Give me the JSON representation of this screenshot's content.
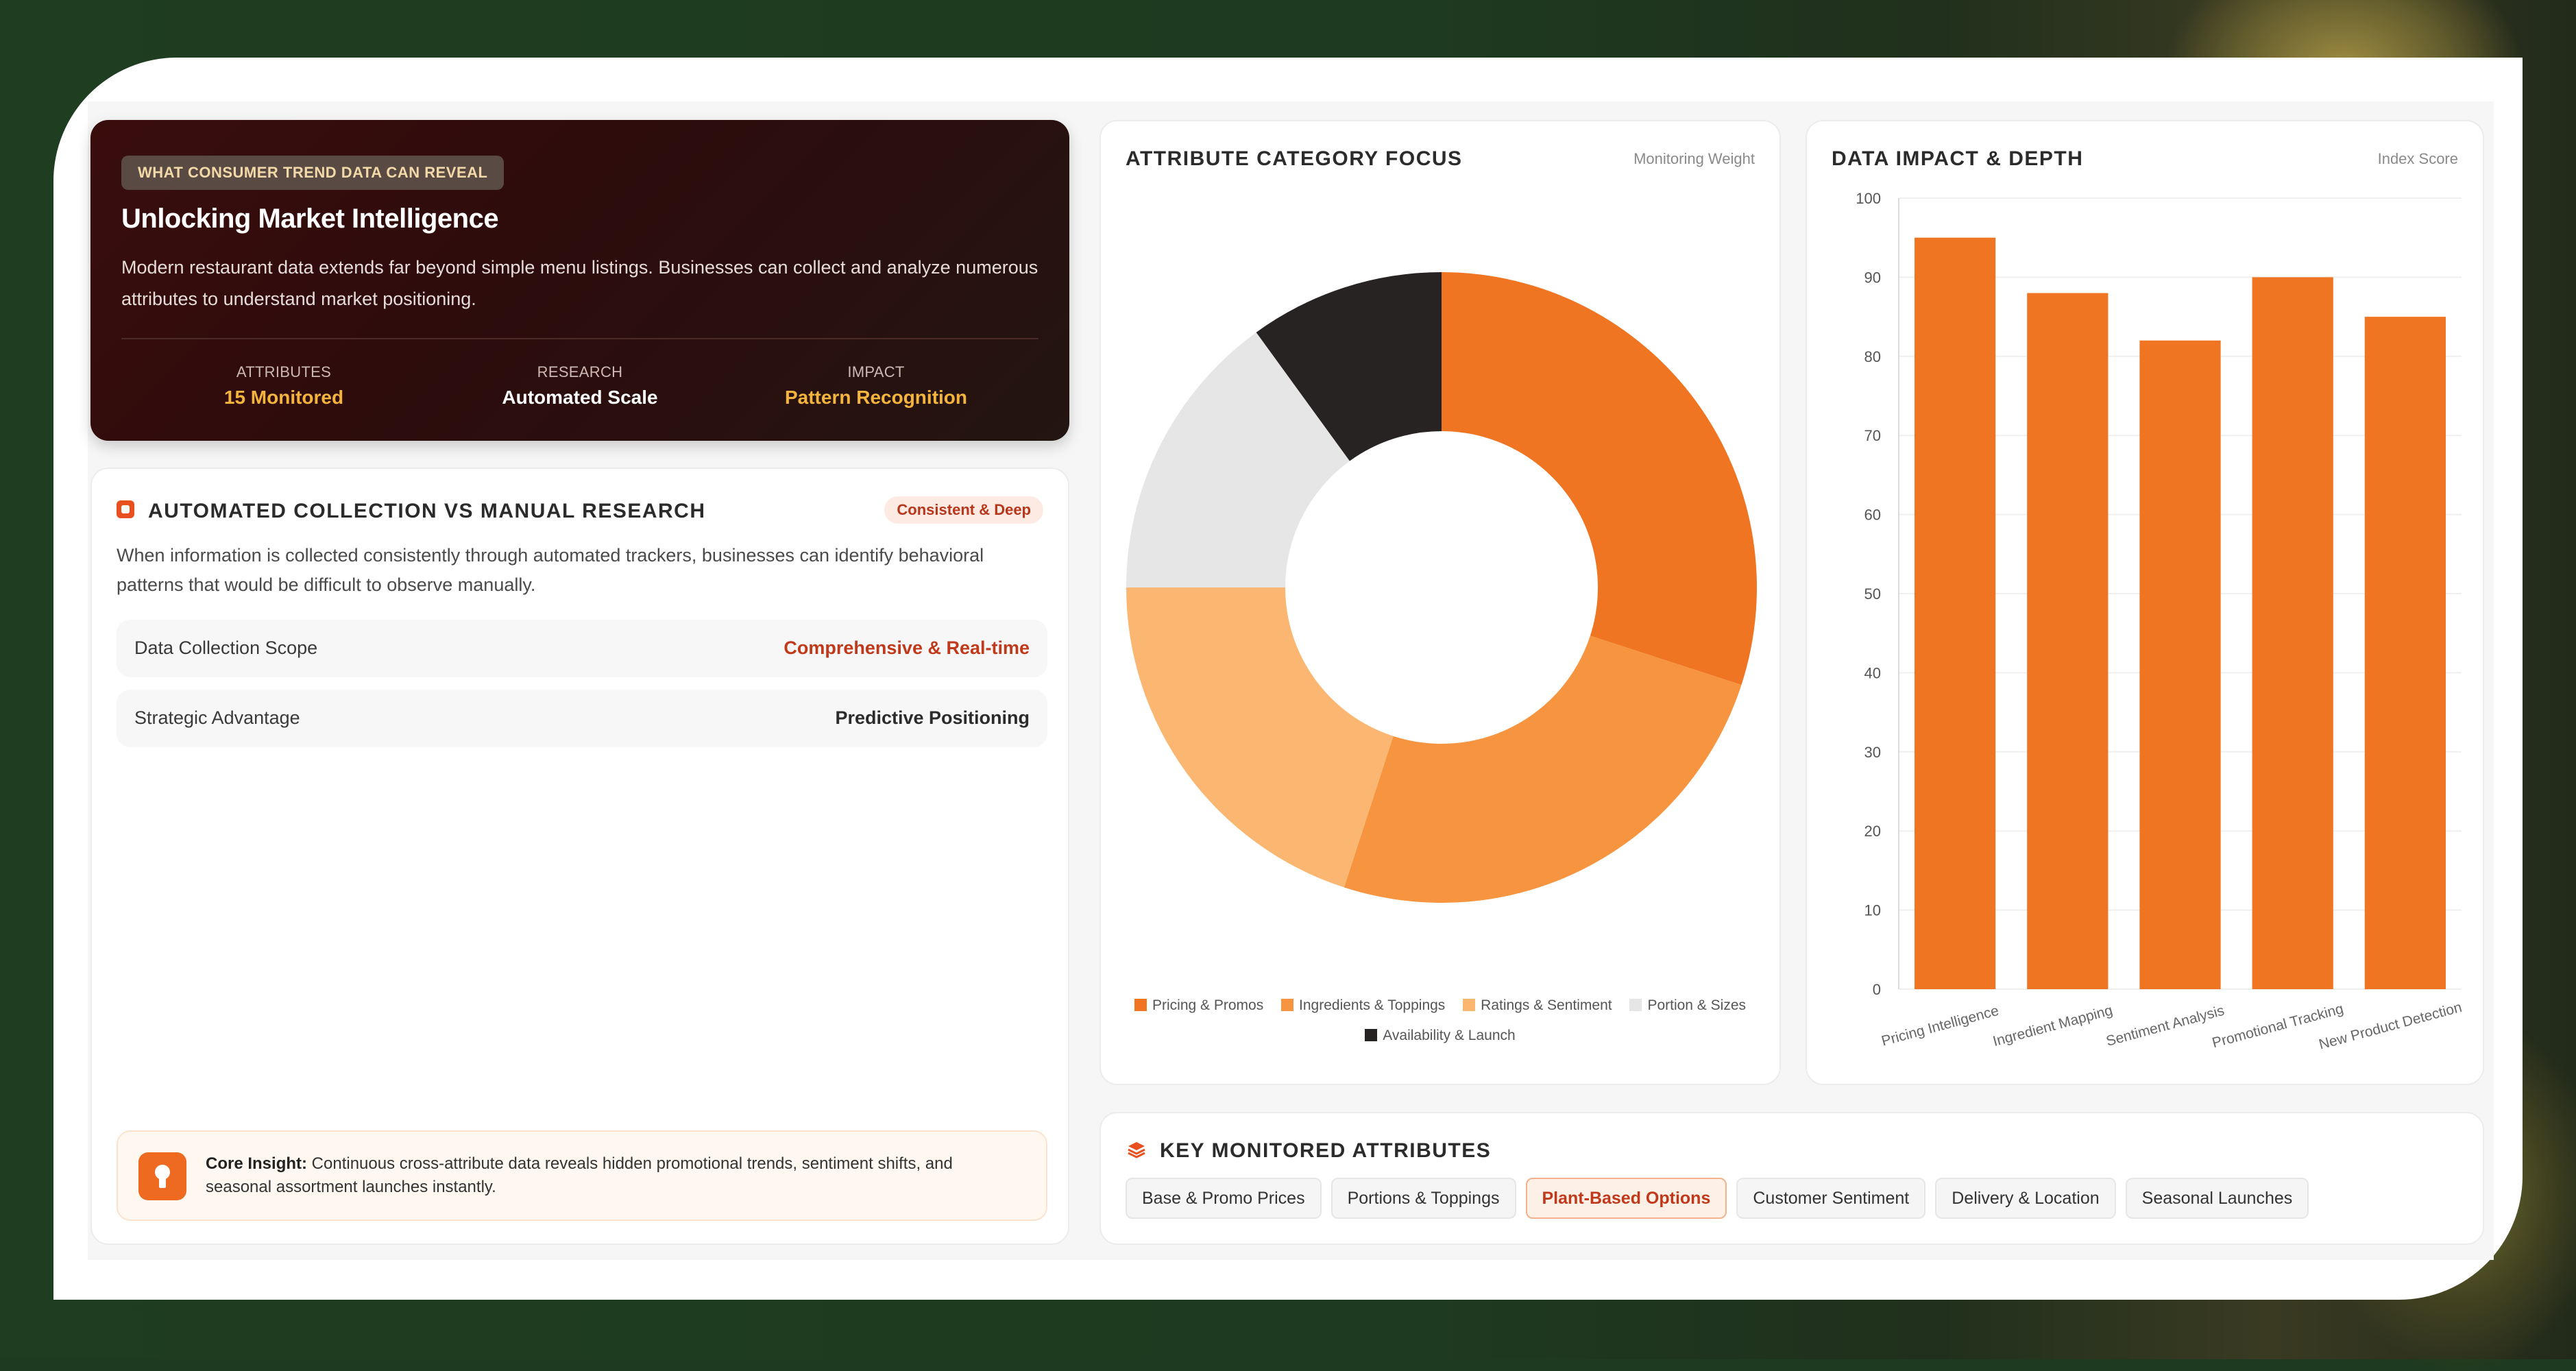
{
  "theme": {
    "accent": "#ef6a21",
    "dark_card": "#2d0c0c",
    "gold": "#f5b53c"
  },
  "hero": {
    "badge": "WHAT CONSUMER TREND DATA CAN REVEAL",
    "title": "Unlocking Market Intelligence",
    "description": "Modern restaurant data extends far beyond simple menu listings. Businesses can collect and analyze numerous attributes to understand market positioning.",
    "stats": [
      {
        "label": "ATTRIBUTES",
        "value": "15 Monitored",
        "color": "#f5b53c"
      },
      {
        "label": "RESEARCH",
        "value": "Automated Scale",
        "color": "#ffffff"
      },
      {
        "label": "IMPACT",
        "value": "Pattern Recognition",
        "color": "#f5b53c"
      }
    ]
  },
  "automated": {
    "title": "AUTOMATED COLLECTION VS MANUAL RESEARCH",
    "pill": "Consistent & Deep",
    "description": "When information is collected consistently through automated trackers, businesses can identify behavioral patterns that would be difficult to observe manually.",
    "rows": [
      {
        "key": "Data Collection Scope",
        "value": "Comprehensive & Real-time",
        "color": "#c0391b"
      },
      {
        "key": "Strategic Advantage",
        "value": "Predictive Positioning",
        "color": "#2b2b2b"
      }
    ],
    "insight_label": "Core Insight:",
    "insight_text": " Continuous cross-attribute data reveals hidden promotional trends, sentiment shifts, and seasonal assortment launches instantly.",
    "icons": {
      "header": "chip-icon",
      "insight": "lightbulb-icon"
    }
  },
  "focus": {
    "title": "ATTRIBUTE CATEGORY FOCUS",
    "subtitle": "Monitoring Weight"
  },
  "impact": {
    "title": "DATA IMPACT & DEPTH",
    "subtitle": "Index Score"
  },
  "key_attributes": {
    "title": "KEY MONITORED ATTRIBUTES",
    "icon": "layers-icon",
    "tags": [
      {
        "label": "Base & Promo Prices",
        "active": false
      },
      {
        "label": "Portions & Toppings",
        "active": false
      },
      {
        "label": "Plant-Based Options",
        "active": true
      },
      {
        "label": "Customer Sentiment",
        "active": false
      },
      {
        "label": "Delivery & Location",
        "active": false
      },
      {
        "label": "Seasonal Launches",
        "active": false
      }
    ]
  },
  "chart_data": [
    {
      "type": "pie",
      "donut": true,
      "categories": [
        "Pricing & Promos",
        "Ingredients & Toppings",
        "Ratings & Sentiment",
        "Portion & Sizes",
        "Availability & Launch"
      ],
      "values": [
        30,
        25,
        20,
        15,
        10
      ],
      "colors": [
        "#f07522",
        "#f79440",
        "#fbb772",
        "#e7e6e6",
        "#282323"
      ],
      "legend_position": "bottom"
    },
    {
      "type": "bar",
      "categories": [
        "Pricing Intelligence",
        "Ingredient Mapping",
        "Sentiment Analysis",
        "Promotional Tracking",
        "New Product Detection"
      ],
      "values": [
        95,
        88,
        82,
        90,
        85
      ],
      "ylim": [
        0,
        100
      ],
      "yticks": [
        0,
        10,
        20,
        30,
        40,
        50,
        60,
        70,
        80,
        90,
        100
      ],
      "color": "#f07522",
      "grid": true
    }
  ]
}
